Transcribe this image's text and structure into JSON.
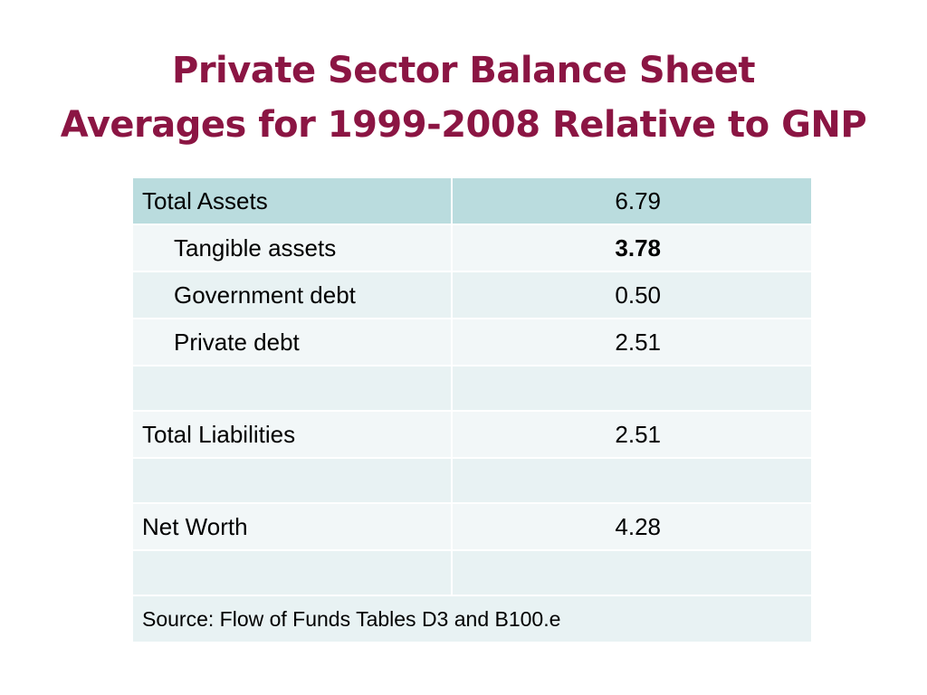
{
  "title": {
    "line1": "Private Sector Balance Sheet",
    "line2": "Averages for 1999-2008 Relative to GNP"
  },
  "table": {
    "rows": [
      {
        "label": "Total Assets",
        "value": "6.79"
      },
      {
        "label": "Tangible assets",
        "value": "3.78"
      },
      {
        "label": "Government debt",
        "value": "0.50"
      },
      {
        "label": "Private debt",
        "value": "2.51"
      },
      {
        "label": "",
        "value": ""
      },
      {
        "label": "Total Liabilities",
        "value": "2.51"
      },
      {
        "label": "",
        "value": ""
      },
      {
        "label": "Net Worth",
        "value": "4.28"
      },
      {
        "label": "",
        "value": ""
      }
    ],
    "source": "Source: Flow of Funds Tables D3 and B100.e"
  },
  "colors": {
    "title": "#8b1543",
    "header_row": "#badcde",
    "row_band_a": "#e8f2f3",
    "row_band_b": "#f2f7f8"
  }
}
